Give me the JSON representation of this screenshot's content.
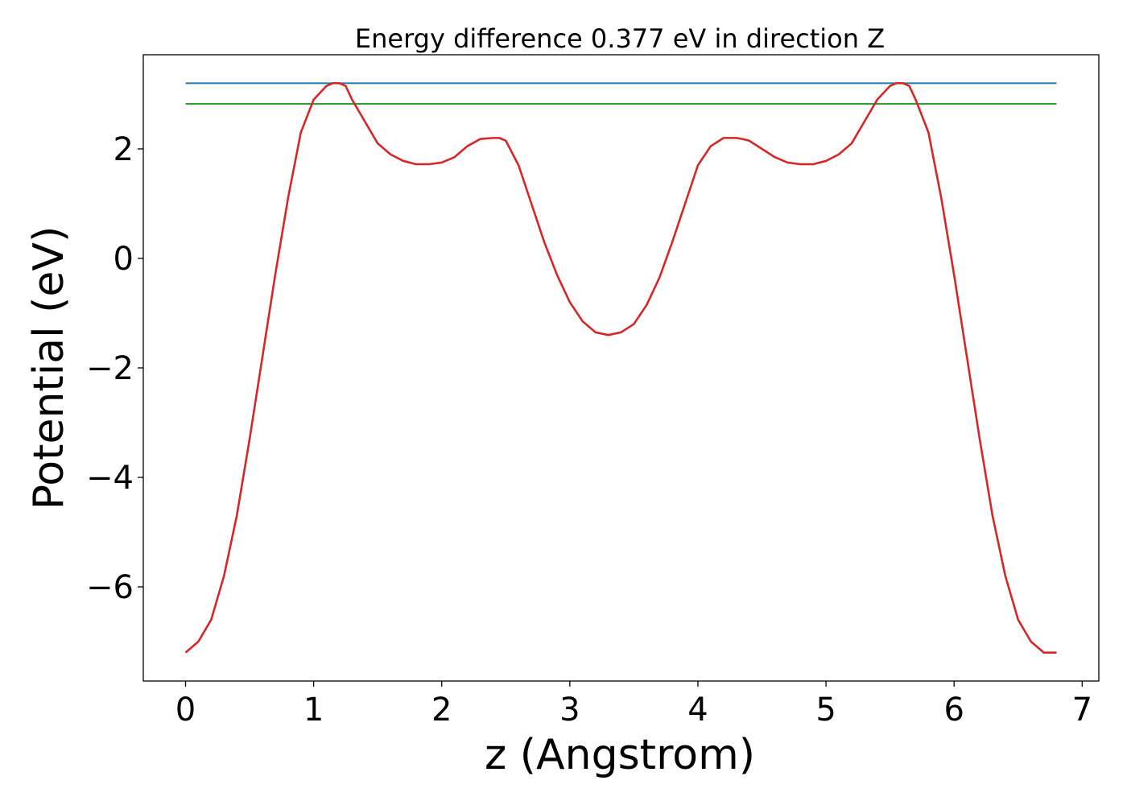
{
  "chart_data": {
    "type": "line",
    "title": "Energy difference 0.377 eV in direction Z",
    "xlabel": "z (Angstrom)",
    "ylabel": "Potential (eV)",
    "xlim": [
      -0.33,
      7.13
    ],
    "ylim": [
      -7.72,
      3.72
    ],
    "xticks": [
      0,
      1,
      2,
      3,
      4,
      5,
      6,
      7
    ],
    "yticks": [
      -6,
      -4,
      -2,
      0,
      2
    ],
    "ytick_labels": [
      "−6",
      "−4",
      "−2",
      "0",
      "2"
    ],
    "grid": false,
    "series": [
      {
        "color": "#d62728",
        "x": [
          0,
          0.1,
          0.2,
          0.3,
          0.4,
          0.5,
          0.6,
          0.7,
          0.8,
          0.9,
          1.0,
          1.1,
          1.15,
          1.2,
          1.25,
          1.3,
          1.4,
          1.5,
          1.6,
          1.7,
          1.8,
          1.9,
          2.0,
          2.1,
          2.2,
          2.3,
          2.4,
          2.45,
          2.5,
          2.6,
          2.7,
          2.8,
          2.9,
          3.0,
          3.1,
          3.2,
          3.3,
          3.4,
          3.5,
          3.6,
          3.7,
          3.8,
          3.9,
          4.0,
          4.1,
          4.2,
          4.3,
          4.35,
          4.4,
          4.5,
          4.6,
          4.7,
          4.8,
          4.9,
          5.0,
          5.1,
          5.2,
          5.3,
          5.4,
          5.5,
          5.55,
          5.6,
          5.65,
          5.7,
          5.8,
          5.9,
          6.0,
          6.1,
          6.2,
          6.3,
          6.4,
          6.5,
          6.6,
          6.7,
          6.8
        ],
        "y": [
          -7.2,
          -7.0,
          -6.6,
          -5.8,
          -4.7,
          -3.3,
          -1.8,
          -0.3,
          1.1,
          2.3,
          2.9,
          3.15,
          3.2,
          3.2,
          3.15,
          2.9,
          2.5,
          2.1,
          1.9,
          1.78,
          1.72,
          1.72,
          1.75,
          1.85,
          2.05,
          2.18,
          2.2,
          2.2,
          2.15,
          1.7,
          1.0,
          0.3,
          -0.3,
          -0.8,
          -1.15,
          -1.35,
          -1.4,
          -1.35,
          -1.2,
          -0.85,
          -0.35,
          0.3,
          1.0,
          1.7,
          2.05,
          2.2,
          2.2,
          2.18,
          2.15,
          2.0,
          1.85,
          1.75,
          1.72,
          1.72,
          1.78,
          1.9,
          2.1,
          2.5,
          2.9,
          3.15,
          3.2,
          3.2,
          3.15,
          2.9,
          2.3,
          1.1,
          -0.3,
          -1.8,
          -3.3,
          -4.7,
          -5.8,
          -6.6,
          -7.0,
          -7.2,
          -7.2
        ]
      },
      {
        "color": "#1f77b4",
        "x": [
          0,
          6.8
        ],
        "y": [
          3.2,
          3.2
        ]
      },
      {
        "color": "#2ca02c",
        "x": [
          0,
          6.8
        ],
        "y": [
          2.823,
          2.823
        ]
      }
    ]
  }
}
